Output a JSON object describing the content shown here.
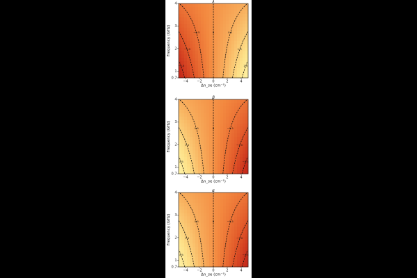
{
  "colors": {
    "background": "#000000",
    "figure": "#ffffff",
    "colormap": [
      "#fff9b0",
      "#fde28a",
      "#f8b05e",
      "#f3883f",
      "#e25a2a",
      "#c62a1a"
    ],
    "contour": "#111111"
  },
  "chart_data": [
    {
      "type": "heatmap",
      "title": "λ",
      "xlabel": "Δn_se (cm⁻¹)",
      "ylabel": "Frequency (GHz)",
      "xlim": [
        -5,
        5
      ],
      "ylim": [
        0.7,
        4
      ],
      "xticks": [
        "−4",
        "−2",
        "0",
        "2",
        "4"
      ],
      "yticks": [
        "0.7",
        "1",
        "2",
        "3",
        "4"
      ],
      "grid": false,
      "contour_levels": [
        -1.5,
        -1.0,
        -0.5,
        0,
        0.5,
        1.0,
        1.5
      ],
      "contour_labels": [
        "−1.5",
        "−1.0",
        "−0.5",
        "0",
        "0.5",
        "1.0",
        "1.5"
      ],
      "value_sign": 1
    },
    {
      "type": "heatmap",
      "title": "β",
      "xlabel": "Δn_se (cm⁻¹)",
      "ylabel": "Frequency (GHz)",
      "xlim": [
        -5,
        5
      ],
      "ylim": [
        0.7,
        4
      ],
      "xticks": [
        "−4",
        "−2",
        "0",
        "2",
        "4"
      ],
      "yticks": [
        "0.7",
        "1",
        "2",
        "3",
        "4"
      ],
      "grid": false,
      "contour_levels": [
        -1.5,
        -1.0,
        -0.5,
        0,
        0.5,
        1.0,
        1.5
      ],
      "contour_labels": [
        "−1.5",
        "−1.0",
        "−0.5",
        "0",
        "0.5",
        "1.0",
        "1.5"
      ],
      "value_sign": -1
    },
    {
      "type": "heatmap",
      "title": "α",
      "xlabel": "Δn_se (cm⁻¹)",
      "ylabel": "Frequency (GHz)",
      "xlim": [
        -5,
        5
      ],
      "ylim": [
        0.7,
        4
      ],
      "xticks": [
        "−4",
        "−2",
        "0",
        "2",
        "4"
      ],
      "yticks": [
        "0.7",
        "1",
        "2",
        "3",
        "4"
      ],
      "grid": false,
      "contour_levels": [
        -1.5,
        -1.0,
        -0.5,
        0,
        0.5,
        1.0,
        1.5
      ],
      "contour_labels": [
        "−1.5",
        "−1.0",
        "−0.5",
        "0",
        "0.5",
        "1.0",
        "1.5"
      ],
      "value_sign": -1
    }
  ]
}
